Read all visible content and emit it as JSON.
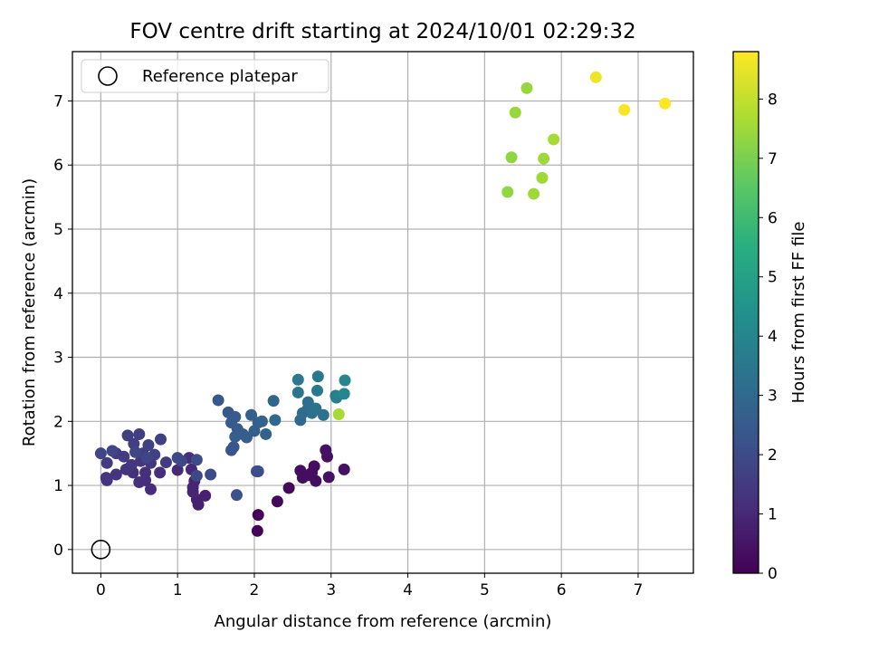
{
  "chart_data": {
    "type": "scatter",
    "title": "FOV centre drift starting at 2024/10/01 02:29:32",
    "xlabel": "Angular distance from reference (arcmin)",
    "ylabel": "Rotation from reference (arcmin)",
    "xlim": [
      -0.37,
      7.72
    ],
    "ylim": [
      -0.37,
      7.77
    ],
    "xticks": [
      0,
      1,
      2,
      3,
      4,
      5,
      6,
      7
    ],
    "yticks": [
      0,
      1,
      2,
      3,
      4,
      5,
      6,
      7
    ],
    "grid": true,
    "legend": {
      "position": "top-left",
      "entries": [
        "Reference platepar"
      ]
    },
    "colorbar": {
      "label": "Hours from first FF file",
      "colormap": "viridis",
      "range": [
        0,
        8.8
      ],
      "ticks": [
        0,
        1,
        2,
        3,
        4,
        5,
        6,
        7,
        8
      ]
    },
    "reference_point": {
      "x": 0,
      "y": 0
    },
    "points": [
      {
        "x": 2.04,
        "y": 0.29,
        "h": 0.1
      },
      {
        "x": 2.05,
        "y": 0.54,
        "h": 0.1
      },
      {
        "x": 2.3,
        "y": 0.75,
        "h": 0.2
      },
      {
        "x": 2.45,
        "y": 0.96,
        "h": 0.2
      },
      {
        "x": 2.6,
        "y": 1.23,
        "h": 0.3
      },
      {
        "x": 2.63,
        "y": 1.12,
        "h": 0.3
      },
      {
        "x": 2.75,
        "y": 1.2,
        "h": 0.3
      },
      {
        "x": 2.78,
        "y": 1.3,
        "h": 0.3
      },
      {
        "x": 2.8,
        "y": 1.07,
        "h": 0.3
      },
      {
        "x": 2.93,
        "y": 1.55,
        "h": 0.4
      },
      {
        "x": 2.95,
        "y": 1.45,
        "h": 0.4
      },
      {
        "x": 2.97,
        "y": 1.13,
        "h": 0.4
      },
      {
        "x": 3.17,
        "y": 1.25,
        "h": 0.4
      },
      {
        "x": 2.7,
        "y": 1.16,
        "h": 0.3
      },
      {
        "x": 1.27,
        "y": 0.7,
        "h": 0.8
      },
      {
        "x": 1.25,
        "y": 0.78,
        "h": 0.8
      },
      {
        "x": 1.36,
        "y": 0.84,
        "h": 0.8
      },
      {
        "x": 1.2,
        "y": 0.9,
        "h": 0.9
      },
      {
        "x": 1.2,
        "y": 0.97,
        "h": 0.9
      },
      {
        "x": 1.22,
        "y": 1.07,
        "h": 0.9
      },
      {
        "x": 1.0,
        "y": 1.24,
        "h": 1.0
      },
      {
        "x": 1.18,
        "y": 1.25,
        "h": 1.0
      },
      {
        "x": 1.15,
        "y": 1.43,
        "h": 1.1
      },
      {
        "x": 0.58,
        "y": 1.08,
        "h": 1.1
      },
      {
        "x": 0.65,
        "y": 0.94,
        "h": 1.1
      },
      {
        "x": 0.5,
        "y": 1.05,
        "h": 1.2
      },
      {
        "x": 0.42,
        "y": 1.2,
        "h": 1.2
      },
      {
        "x": 0.58,
        "y": 1.2,
        "h": 1.2
      },
      {
        "x": 0.77,
        "y": 1.2,
        "h": 1.2
      },
      {
        "x": 0.08,
        "y": 1.08,
        "h": 1.3
      },
      {
        "x": 0.07,
        "y": 1.12,
        "h": 1.3
      },
      {
        "x": 0.2,
        "y": 1.17,
        "h": 1.3
      },
      {
        "x": 0.33,
        "y": 1.25,
        "h": 1.3
      },
      {
        "x": 0.4,
        "y": 1.32,
        "h": 1.4
      },
      {
        "x": 0.52,
        "y": 1.38,
        "h": 1.4
      },
      {
        "x": 0.65,
        "y": 1.35,
        "h": 1.4
      },
      {
        "x": 0.85,
        "y": 1.36,
        "h": 1.5
      },
      {
        "x": 0.08,
        "y": 1.35,
        "h": 1.5
      },
      {
        "x": 0.2,
        "y": 1.5,
        "h": 1.5
      },
      {
        "x": 0.3,
        "y": 1.45,
        "h": 1.5
      },
      {
        "x": 0.35,
        "y": 1.78,
        "h": 1.6
      },
      {
        "x": 0.43,
        "y": 1.65,
        "h": 1.6
      },
      {
        "x": 0.5,
        "y": 1.8,
        "h": 1.6
      },
      {
        "x": 0.55,
        "y": 1.5,
        "h": 1.6
      },
      {
        "x": 0.62,
        "y": 1.63,
        "h": 1.7
      },
      {
        "x": 0.78,
        "y": 1.72,
        "h": 1.7
      },
      {
        "x": 0.7,
        "y": 1.48,
        "h": 1.7
      },
      {
        "x": 0.0,
        "y": 1.5,
        "h": 1.8
      },
      {
        "x": 0.15,
        "y": 1.54,
        "h": 1.8
      },
      {
        "x": 0.45,
        "y": 1.52,
        "h": 1.8
      },
      {
        "x": 0.6,
        "y": 1.43,
        "h": 1.8
      },
      {
        "x": 1.0,
        "y": 1.43,
        "h": 1.9
      },
      {
        "x": 1.05,
        "y": 1.38,
        "h": 1.9
      },
      {
        "x": 1.25,
        "y": 1.15,
        "h": 1.9
      },
      {
        "x": 1.25,
        "y": 1.4,
        "h": 2.0
      },
      {
        "x": 1.43,
        "y": 1.17,
        "h": 2.0
      },
      {
        "x": 2.03,
        "y": 1.22,
        "h": 2.1
      },
      {
        "x": 2.05,
        "y": 1.22,
        "h": 2.1
      },
      {
        "x": 1.77,
        "y": 0.85,
        "h": 2.2
      },
      {
        "x": 1.7,
        "y": 1.55,
        "h": 2.3
      },
      {
        "x": 1.73,
        "y": 1.6,
        "h": 2.3
      },
      {
        "x": 1.53,
        "y": 2.33,
        "h": 2.4
      },
      {
        "x": 1.66,
        "y": 2.14,
        "h": 2.4
      },
      {
        "x": 1.7,
        "y": 1.98,
        "h": 2.5
      },
      {
        "x": 1.75,
        "y": 2.07,
        "h": 2.5
      },
      {
        "x": 1.78,
        "y": 1.88,
        "h": 2.5
      },
      {
        "x": 1.75,
        "y": 1.76,
        "h": 2.6
      },
      {
        "x": 1.85,
        "y": 1.8,
        "h": 2.6
      },
      {
        "x": 1.9,
        "y": 1.75,
        "h": 2.6
      },
      {
        "x": 1.96,
        "y": 2.1,
        "h": 2.7
      },
      {
        "x": 2.0,
        "y": 1.85,
        "h": 2.7
      },
      {
        "x": 2.05,
        "y": 1.98,
        "h": 2.7
      },
      {
        "x": 2.1,
        "y": 2.0,
        "h": 2.8
      },
      {
        "x": 2.15,
        "y": 1.8,
        "h": 2.8
      },
      {
        "x": 2.25,
        "y": 2.32,
        "h": 2.9
      },
      {
        "x": 2.27,
        "y": 2.02,
        "h": 2.9
      },
      {
        "x": 2.6,
        "y": 2.02,
        "h": 3.0
      },
      {
        "x": 2.63,
        "y": 2.13,
        "h": 3.1
      },
      {
        "x": 2.7,
        "y": 2.2,
        "h": 3.1
      },
      {
        "x": 2.7,
        "y": 2.3,
        "h": 3.2
      },
      {
        "x": 2.75,
        "y": 2.13,
        "h": 3.2
      },
      {
        "x": 2.8,
        "y": 2.2,
        "h": 3.3
      },
      {
        "x": 2.9,
        "y": 2.1,
        "h": 3.3
      },
      {
        "x": 2.57,
        "y": 2.45,
        "h": 3.4
      },
      {
        "x": 2.57,
        "y": 2.65,
        "h": 3.5
      },
      {
        "x": 2.82,
        "y": 2.48,
        "h": 3.5
      },
      {
        "x": 2.83,
        "y": 2.7,
        "h": 3.5
      },
      {
        "x": 3.06,
        "y": 2.4,
        "h": 3.7
      },
      {
        "x": 3.07,
        "y": 2.37,
        "h": 3.8
      },
      {
        "x": 3.17,
        "y": 2.43,
        "h": 4.0
      },
      {
        "x": 3.18,
        "y": 2.64,
        "h": 4.0
      },
      {
        "x": 3.1,
        "y": 2.11,
        "h": 7.6
      },
      {
        "x": 5.3,
        "y": 5.58,
        "h": 7.3
      },
      {
        "x": 5.35,
        "y": 6.12,
        "h": 7.3
      },
      {
        "x": 5.4,
        "y": 6.82,
        "h": 7.4
      },
      {
        "x": 5.55,
        "y": 7.2,
        "h": 7.4
      },
      {
        "x": 5.64,
        "y": 5.55,
        "h": 7.5
      },
      {
        "x": 5.75,
        "y": 5.8,
        "h": 7.5
      },
      {
        "x": 5.77,
        "y": 6.1,
        "h": 7.5
      },
      {
        "x": 5.9,
        "y": 6.4,
        "h": 7.6
      },
      {
        "x": 6.45,
        "y": 7.37,
        "h": 8.6
      },
      {
        "x": 6.82,
        "y": 6.86,
        "h": 8.7
      },
      {
        "x": 7.35,
        "y": 6.96,
        "h": 8.8
      }
    ]
  }
}
